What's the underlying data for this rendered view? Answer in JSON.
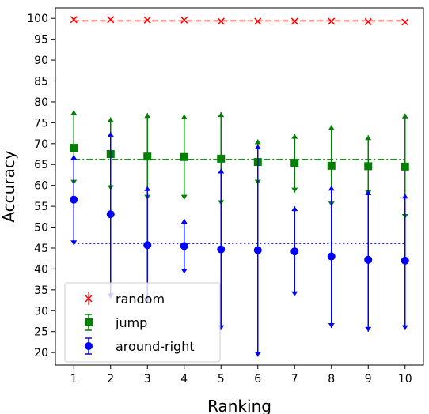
{
  "chart_data": {
    "type": "scatter",
    "xlabel": "Ranking",
    "ylabel": "Accuracy",
    "x": [
      1,
      2,
      3,
      4,
      5,
      6,
      7,
      8,
      9,
      10
    ],
    "xlim": [
      0.5,
      10.5
    ],
    "ylim": [
      17,
      102.5
    ],
    "yticks": [
      20,
      25,
      30,
      35,
      40,
      45,
      50,
      55,
      60,
      65,
      70,
      75,
      80,
      85,
      90,
      95,
      100
    ],
    "grid": false,
    "legend_position": "lower-left",
    "series": [
      {
        "name": "random",
        "color": "#ff0000",
        "marker": "x",
        "values": [
          99.7,
          99.7,
          99.6,
          99.6,
          99.3,
          99.3,
          99.3,
          99.3,
          99.2,
          99.1
        ],
        "err_low": [
          99.7,
          99.7,
          99.6,
          99.6,
          99.3,
          99.3,
          99.3,
          99.3,
          99.2,
          99.1
        ],
        "err_high": [
          99.7,
          99.7,
          99.6,
          99.6,
          99.3,
          99.3,
          99.3,
          99.3,
          99.2,
          99.1
        ],
        "mean_line": 99.4,
        "mean_style": "dashed"
      },
      {
        "name": "jump",
        "color": "#008000",
        "marker": "square",
        "values": [
          69.0,
          67.5,
          66.9,
          66.8,
          66.4,
          65.6,
          65.4,
          64.7,
          64.6,
          64.5
        ],
        "err_low": [
          60.2,
          58.9,
          56.6,
          56.6,
          55.3,
          60.2,
          58.3,
          55.0,
          57.7,
          52.0
        ],
        "err_high": [
          78.0,
          76.3,
          77.3,
          77.0,
          77.5,
          71.0,
          72.3,
          74.4,
          72.0,
          77.2
        ],
        "mean_line": 66.2,
        "mean_style": "dashdot"
      },
      {
        "name": "around-right",
        "color": "#0000ff",
        "marker": "circle",
        "values": [
          56.6,
          53.1,
          45.7,
          45.5,
          44.7,
          44.5,
          44.2,
          43.0,
          42.2,
          42.0
        ],
        "err_low": [
          45.7,
          33.0,
          32.0,
          38.9,
          25.4,
          19.0,
          33.5,
          25.9,
          25.0,
          25.4
        ],
        "err_high": [
          67.3,
          72.8,
          59.8,
          52.0,
          64.0,
          69.8,
          55.0,
          59.9,
          58.8,
          58.0
        ],
        "mean_line": 46.1,
        "mean_style": "dotted"
      }
    ]
  }
}
